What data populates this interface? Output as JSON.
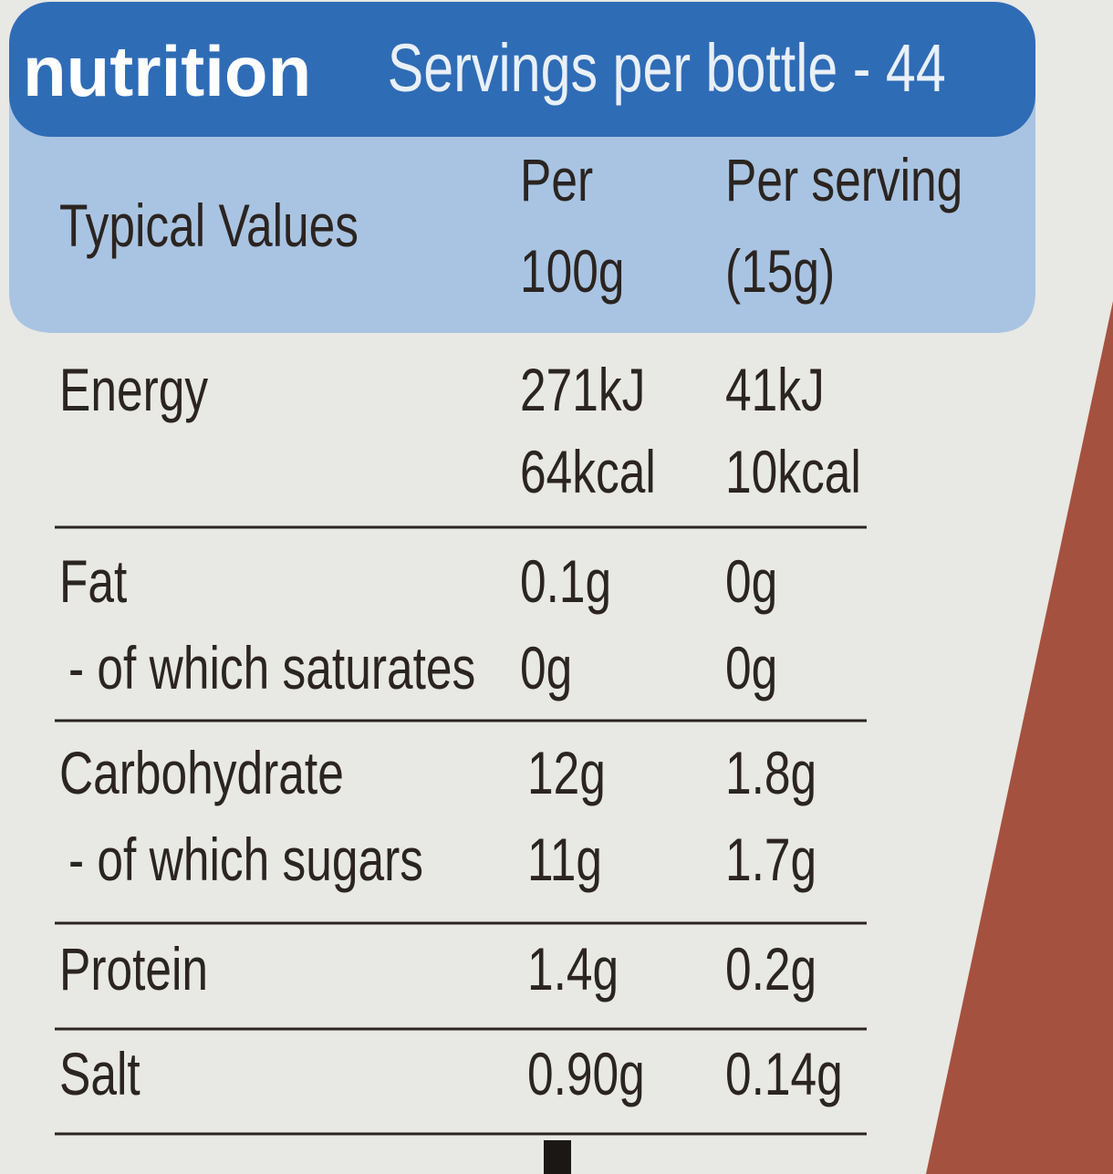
{
  "header": {
    "brand": "nutrition",
    "servings": "Servings per bottle - 44"
  },
  "table": {
    "columns": {
      "label": "Typical Values",
      "per_100g": [
        "Per",
        "100g"
      ],
      "per_serving": [
        "Per serving",
        "(15g)"
      ]
    },
    "groups": [
      [
        {
          "label": "Energy",
          "per_100g": "271kJ",
          "per_serving": "41kJ"
        },
        {
          "per_100g": "64kcal",
          "per_serving": "10kcal"
        }
      ],
      [
        {
          "label": "Fat",
          "per_100g": "0.1g",
          "per_serving": "0g"
        },
        {
          "label": "- of which saturates",
          "per_100g": "0g",
          "per_serving": "0g"
        }
      ],
      [
        {
          "label": "Carbohydrate",
          "per_100g": "12g",
          "per_serving": "1.8g"
        },
        {
          "label": "- of which sugars",
          "per_100g": "11g",
          "per_serving": "1.7g"
        }
      ],
      [
        {
          "label": "Protein",
          "per_100g": "1.4g",
          "per_serving": "0.2g"
        }
      ],
      [
        {
          "label": "Salt",
          "per_100g": "0.90g",
          "per_serving": "0.14g"
        }
      ]
    ]
  }
}
